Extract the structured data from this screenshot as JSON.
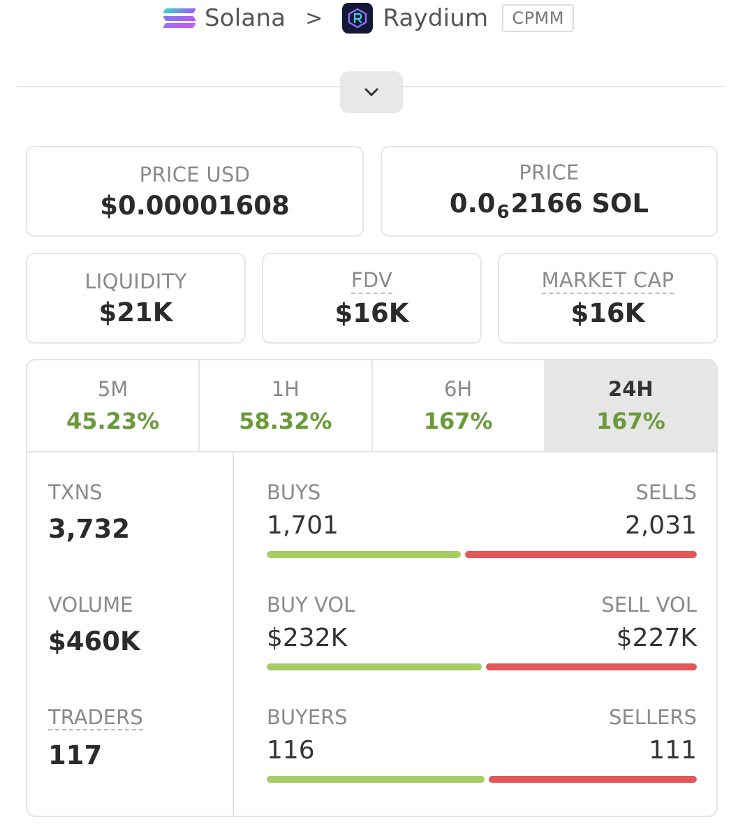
{
  "breadcrumb": {
    "chain": "Solana",
    "separator": ">",
    "dex": "Raydium",
    "pool_type": "CPMM"
  },
  "icons": {
    "chain_logo": "solana-logo-icon",
    "dex_logo": "raydium-logo-icon",
    "toggle": "chevron-down-icon"
  },
  "colors": {
    "positive": "#6b9a3a",
    "buy_bar": "#a8cc66",
    "sell_bar": "#e3575a"
  },
  "stats": {
    "price_usd": {
      "label": "PRICE USD",
      "value": "$0.00001608"
    },
    "price": {
      "label": "PRICE",
      "prefix": "0.0",
      "zeros": "6",
      "suffix": "2166 SOL"
    },
    "liquidity": {
      "label": "LIQUIDITY",
      "value": "$21K"
    },
    "fdv": {
      "label": "FDV",
      "value": "$16K"
    },
    "market_cap": {
      "label": "MARKET CAP",
      "value": "$16K"
    }
  },
  "timeframes": [
    {
      "label": "5M",
      "change": "45.23%"
    },
    {
      "label": "1H",
      "change": "58.32%"
    },
    {
      "label": "6H",
      "change": "167%"
    },
    {
      "label": "24H",
      "change": "167%"
    }
  ],
  "active_timeframe": "24H",
  "metrics": {
    "txns": {
      "label": "TXNS",
      "value": "3,732"
    },
    "volume": {
      "label": "VOLUME",
      "value": "$460K"
    },
    "traders": {
      "label": "TRADERS",
      "value": "117"
    }
  },
  "splits": {
    "txns": {
      "buy_label": "BUYS",
      "buy_value": "1,701",
      "sell_label": "SELLS",
      "sell_value": "2,031",
      "buy_count": 1701,
      "sell_count": 2031
    },
    "volume": {
      "buy_label": "BUY VOL",
      "buy_value": "$232K",
      "sell_label": "SELL VOL",
      "sell_value": "$227K",
      "buy_count": 232,
      "sell_count": 227
    },
    "traders": {
      "buy_label": "BUYERS",
      "buy_value": "116",
      "sell_label": "SELLERS",
      "sell_value": "111",
      "buy_count": 116,
      "sell_count": 111
    }
  }
}
